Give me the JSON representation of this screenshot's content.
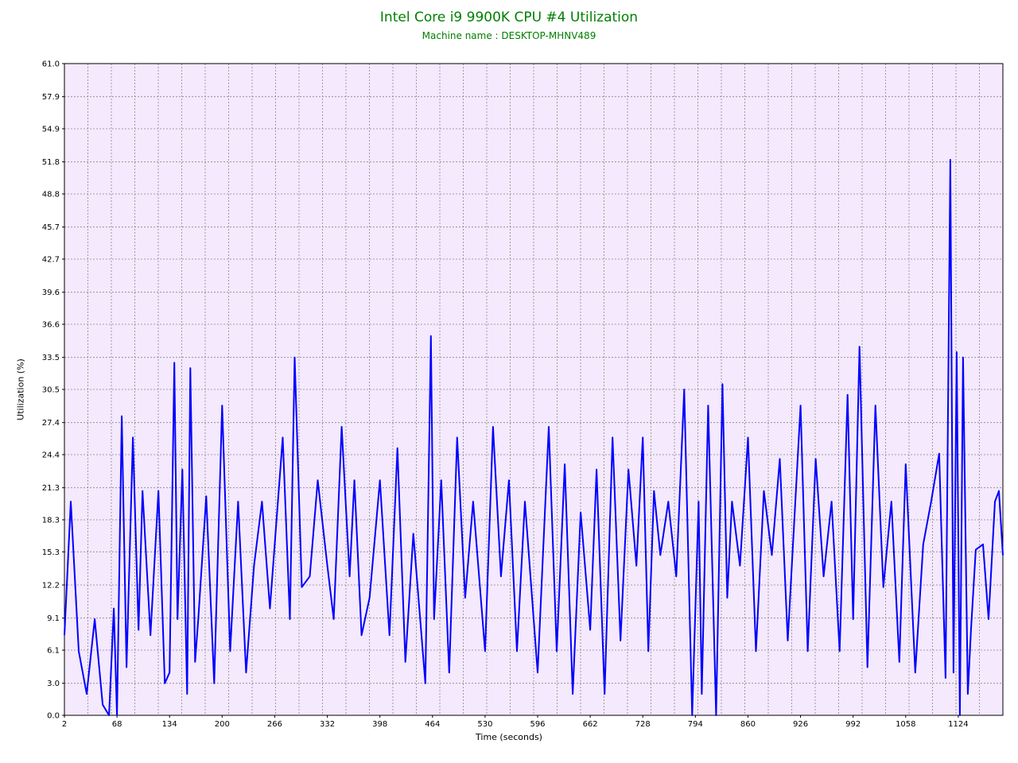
{
  "chart_data": {
    "type": "line",
    "title": "Intel Core i9 9900K CPU #4 Utilization",
    "subtitle": "Machine name : DESKTOP-MHNV489",
    "xlabel": "Time (seconds)",
    "ylabel": "Utilization (%)",
    "xlim": [
      2,
      1180
    ],
    "ylim": [
      0.0,
      61.0
    ],
    "x_ticks": [
      "2",
      "68",
      "134",
      "200",
      "266",
      "332",
      "398",
      "464",
      "530",
      "596",
      "662",
      "728",
      "794",
      "860",
      "926",
      "992",
      "1058",
      "1124"
    ],
    "y_ticks": [
      "0.0",
      "3.0",
      "6.1",
      "9.1",
      "12.2",
      "15.3",
      "18.3",
      "21.3",
      "24.4",
      "27.4",
      "30.5",
      "33.5",
      "36.6",
      "39.6",
      "42.7",
      "45.7",
      "48.8",
      "51.8",
      "54.9",
      "57.9",
      "61.0"
    ],
    "grid": true,
    "colors": {
      "plot_bg": "#f5e9fd",
      "line": "#0000ff",
      "title": "#008000",
      "grid": "#888888"
    },
    "series": [
      {
        "x": [
          2,
          10,
          20,
          30,
          40,
          50,
          58,
          64,
          68,
          74,
          80,
          88,
          95,
          100,
          110,
          120,
          128,
          134,
          140,
          144,
          150,
          156,
          160,
          166,
          170,
          180,
          190,
          200,
          210,
          220,
          230,
          240,
          250,
          260,
          266,
          276,
          285,
          291,
          300,
          310,
          320,
          332,
          340,
          350,
          360,
          366,
          375,
          385,
          398,
          410,
          420,
          430,
          440,
          455,
          462,
          466,
          475,
          485,
          495,
          505,
          515,
          530,
          540,
          550,
          560,
          570,
          580,
          596,
          610,
          620,
          630,
          640,
          650,
          662,
          670,
          680,
          690,
          700,
          710,
          720,
          728,
          735,
          742,
          750,
          760,
          770,
          780,
          790,
          798,
          802,
          810,
          820,
          828,
          834,
          840,
          850,
          860,
          870,
          880,
          890,
          900,
          910,
          926,
          935,
          945,
          955,
          965,
          975,
          985,
          992,
          1000,
          1010,
          1020,
          1030,
          1040,
          1050,
          1058,
          1070,
          1080,
          1090,
          1100,
          1108,
          1114,
          1118,
          1122,
          1126,
          1130,
          1136,
          1140,
          1146,
          1155,
          1162,
          1170,
          1175,
          1180
        ],
        "y": [
          7.5,
          20,
          6,
          2,
          9,
          1,
          0,
          10,
          0,
          28,
          4.5,
          26,
          8,
          21,
          7.5,
          21,
          3,
          4,
          33,
          9,
          23,
          2,
          32.5,
          5,
          9,
          20.5,
          3,
          29,
          6,
          20,
          4,
          14,
          20,
          10,
          16,
          26,
          9,
          33.5,
          12,
          13,
          22,
          14,
          9,
          27,
          13,
          22,
          7.5,
          11,
          22,
          7.5,
          25,
          5,
          17,
          3,
          35.5,
          9,
          22,
          4,
          26,
          11,
          20,
          6,
          27,
          13,
          22,
          6,
          20,
          4,
          27,
          6,
          23.5,
          2,
          19,
          8,
          23,
          2,
          26,
          7,
          23,
          14,
          26,
          6,
          21,
          15,
          20,
          13,
          30.5,
          0,
          20,
          2,
          29,
          0,
          31,
          11,
          20,
          14,
          26,
          6,
          21,
          15,
          24,
          7,
          29,
          6,
          24,
          13,
          20,
          6,
          30,
          9,
          34.5,
          4.5,
          29,
          12,
          20,
          5,
          23.5,
          4,
          16,
          20,
          24.5,
          3.5,
          52,
          4,
          34,
          0,
          33.5,
          2,
          8,
          15.5,
          16,
          9,
          20,
          21,
          15
        ]
      }
    ]
  }
}
